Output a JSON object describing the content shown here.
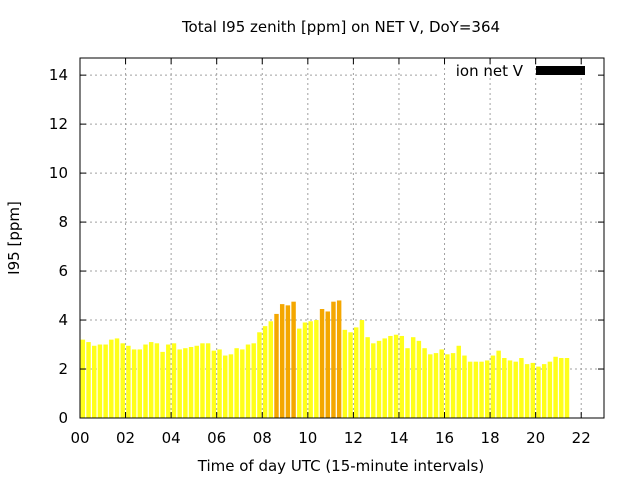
{
  "chart_data": {
    "type": "bar",
    "title": "Total I95 zenith [ppm] on NET V, DoY=364",
    "xlabel": "Time of day UTC (15-minute intervals)",
    "ylabel": "I95 [ppm]",
    "xlim": [
      0,
      23
    ],
    "ylim": [
      0,
      14.7
    ],
    "x_ticks": [
      0,
      2,
      4,
      6,
      8,
      10,
      12,
      14,
      16,
      18,
      20,
      22
    ],
    "x_tick_labels": [
      "00",
      "02",
      "04",
      "06",
      "08",
      "10",
      "12",
      "14",
      "16",
      "18",
      "20",
      "22"
    ],
    "y_ticks": [
      0,
      2,
      4,
      6,
      8,
      10,
      12,
      14
    ],
    "y_tick_labels": [
      "0",
      "2",
      "4",
      "6",
      "8",
      "10",
      "12",
      "14"
    ],
    "grid": true,
    "legend": {
      "label": "ion net V",
      "position": "top-right",
      "color": "#000000"
    },
    "bar_interval_hours": 0.25,
    "threshold": 4.0,
    "colors": {
      "normal": "#ffff1a",
      "elevated": "#f4a700"
    },
    "values": [
      3.2,
      3.1,
      2.95,
      3.0,
      3.0,
      3.2,
      3.25,
      3.05,
      2.95,
      2.8,
      2.8,
      3.0,
      3.1,
      3.05,
      2.7,
      3.0,
      3.05,
      2.8,
      2.85,
      2.9,
      2.95,
      3.05,
      3.05,
      2.75,
      2.8,
      2.55,
      2.6,
      2.85,
      2.8,
      3.0,
      3.05,
      3.5,
      3.75,
      3.95,
      4.25,
      4.65,
      4.6,
      4.75,
      3.65,
      3.9,
      3.95,
      4.0,
      4.45,
      4.35,
      4.75,
      4.8,
      3.6,
      3.5,
      3.7,
      4.0,
      3.3,
      3.05,
      3.15,
      3.25,
      3.35,
      3.4,
      3.35,
      2.85,
      3.3,
      3.15,
      2.85,
      2.6,
      2.65,
      2.8,
      2.6,
      2.65,
      2.95,
      2.55,
      2.3,
      2.3,
      2.3,
      2.35,
      2.55,
      2.75,
      2.45,
      2.35,
      2.3,
      2.45,
      2.2,
      2.25,
      2.1,
      2.2,
      2.3,
      2.5,
      2.45,
      2.45
    ]
  }
}
